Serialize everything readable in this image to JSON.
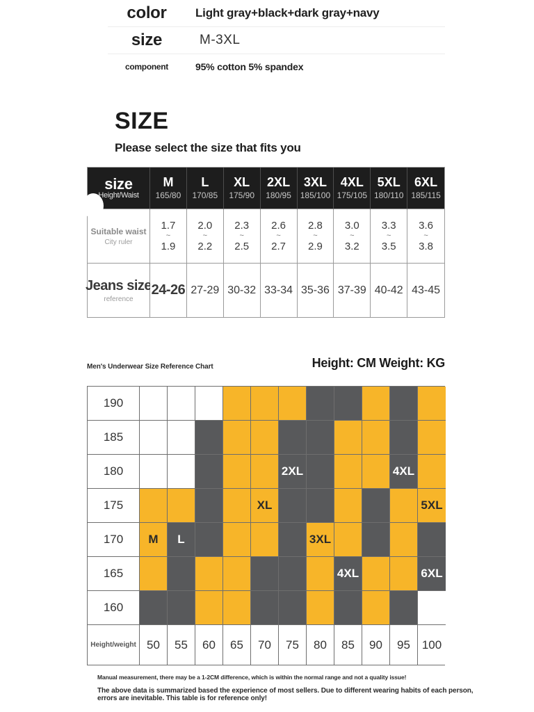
{
  "colors": {
    "accent_yellow": "#f7b529",
    "cell_dark_gray": "#58595b",
    "header_black": "#1d1d1d"
  },
  "product_specs": {
    "rows": [
      {
        "label": "color",
        "value": "Light gray+black+dark gray+navy",
        "label_style": "large",
        "value_style": "bold"
      },
      {
        "label": "size",
        "value": "M-3XL",
        "label_style": "large",
        "value_style": "plain"
      },
      {
        "label": "component",
        "value": "95% cotton 5% spandex",
        "label_style": "small",
        "value_style": "bold"
      }
    ]
  },
  "size_section": {
    "title": "SIZE",
    "subtitle": "Please select the size that fits you"
  },
  "size_table": {
    "corner": {
      "top": "size",
      "bottom": "Height/Waist"
    },
    "columns": [
      {
        "size": "M",
        "height_waist": "165/80"
      },
      {
        "size": "L",
        "height_waist": "170/85"
      },
      {
        "size": "XL",
        "height_waist": "175/90"
      },
      {
        "size": "2XL",
        "height_waist": "180/95"
      },
      {
        "size": "3XL",
        "height_waist": "185/100"
      },
      {
        "size": "4XL",
        "height_waist": "175/105"
      },
      {
        "size": "5XL",
        "height_waist": "180/110"
      },
      {
        "size": "6XL",
        "height_waist": "185/115"
      }
    ],
    "waist_row": {
      "label_top": "Suitable waist",
      "label_bottom": "City ruler",
      "separator": "~",
      "values": [
        [
          "1.7",
          "1.9"
        ],
        [
          "2.0",
          "2.2"
        ],
        [
          "2.3",
          "2.5"
        ],
        [
          "2.6",
          "2.7"
        ],
        [
          "2.8",
          "2.9"
        ],
        [
          "3.0",
          "3.2"
        ],
        [
          "3.3",
          "3.5"
        ],
        [
          "3.6",
          "3.8"
        ]
      ]
    },
    "jeans_row": {
      "label_top": "Jeans size",
      "label_bottom": "reference",
      "values": [
        "24-26",
        "27-29",
        "30-32",
        "33-34",
        "35-36",
        "37-39",
        "40-42",
        "43-45"
      ]
    }
  },
  "chart_data": {
    "type": "heatmap",
    "title": "Men's Underwear Size Reference Chart",
    "units_label": "Height: CM Weight: KG",
    "corner_label": "Height/weight",
    "ylabel_values": [
      "190",
      "185",
      "180",
      "175",
      "170",
      "165",
      "160"
    ],
    "xlabel_values": [
      "50",
      "55",
      "60",
      "65",
      "70",
      "75",
      "80",
      "85",
      "90",
      "95",
      "100"
    ],
    "legend": "w = white/empty, y = yellow region, d = dark gray region",
    "cells": [
      [
        "w",
        "w",
        "w",
        "y",
        "y",
        "y",
        "d",
        "d",
        "y",
        "d",
        "y"
      ],
      [
        "w",
        "w",
        "d",
        "y",
        "y",
        "d",
        "d",
        "y",
        "y",
        "d",
        "y"
      ],
      [
        "w",
        "w",
        "d",
        "y",
        "y",
        "d",
        "d",
        "y",
        "y",
        "d",
        "y"
      ],
      [
        "y",
        "y",
        "d",
        "y",
        "y",
        "d",
        "d",
        "y",
        "d",
        "y",
        "y"
      ],
      [
        "y",
        "d",
        "d",
        "y",
        "y",
        "d",
        "y",
        "y",
        "d",
        "y",
        "d"
      ],
      [
        "y",
        "d",
        "y",
        "y",
        "d",
        "d",
        "y",
        "d",
        "y",
        "y",
        "d"
      ],
      [
        "d",
        "d",
        "y",
        "y",
        "d",
        "d",
        "y",
        "d",
        "y",
        "d",
        "w"
      ]
    ],
    "size_labels": [
      {
        "row": 4,
        "col": 0,
        "text": "M"
      },
      {
        "row": 4,
        "col": 1,
        "text": "L"
      },
      {
        "row": 3,
        "col": 4,
        "text": "XL"
      },
      {
        "row": 2,
        "col": 5,
        "text": "2XL"
      },
      {
        "row": 4,
        "col": 6,
        "text": "3XL"
      },
      {
        "row": 2,
        "col": 9,
        "text": "4XL"
      },
      {
        "row": 3,
        "col": 10,
        "text": "5XL"
      },
      {
        "row": 5,
        "col": 7,
        "text": "4XL"
      },
      {
        "row": 5,
        "col": 10,
        "text": "6XL"
      }
    ]
  },
  "disclaimers": [
    "Manual measurement, there may be a 1-2CM difference, which is within the normal range and not a quality issue!",
    "The above data is summarized based the experience of most sellers. Due to different wearing habits of each person, errors are inevitable. This table is for reference only!"
  ]
}
